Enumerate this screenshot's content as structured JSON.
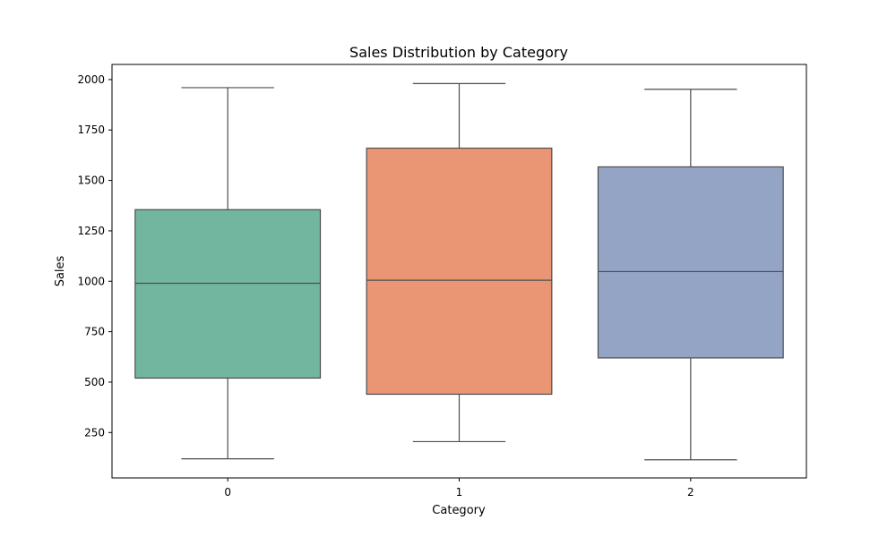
{
  "chart_data": {
    "type": "box",
    "title": "Sales Distribution by Category",
    "xlabel": "Category",
    "ylabel": "Sales",
    "ylim": [
      25,
      2075
    ],
    "yticks": [
      250,
      500,
      750,
      1000,
      1250,
      1500,
      1750,
      2000
    ],
    "grid": false,
    "categories": [
      "0",
      "1",
      "2"
    ],
    "boxes": [
      {
        "category": "0",
        "min": 120,
        "q1": 520,
        "median": 990,
        "q3": 1355,
        "max": 1960,
        "color": "#73b69f"
      },
      {
        "category": "1",
        "min": 205,
        "q1": 440,
        "median": 1005,
        "q3": 1660,
        "max": 1980,
        "color": "#ea9674"
      },
      {
        "category": "2",
        "min": 115,
        "q1": 620,
        "median": 1048,
        "q3": 1567,
        "max": 1952,
        "color": "#94a4c4"
      }
    ]
  }
}
